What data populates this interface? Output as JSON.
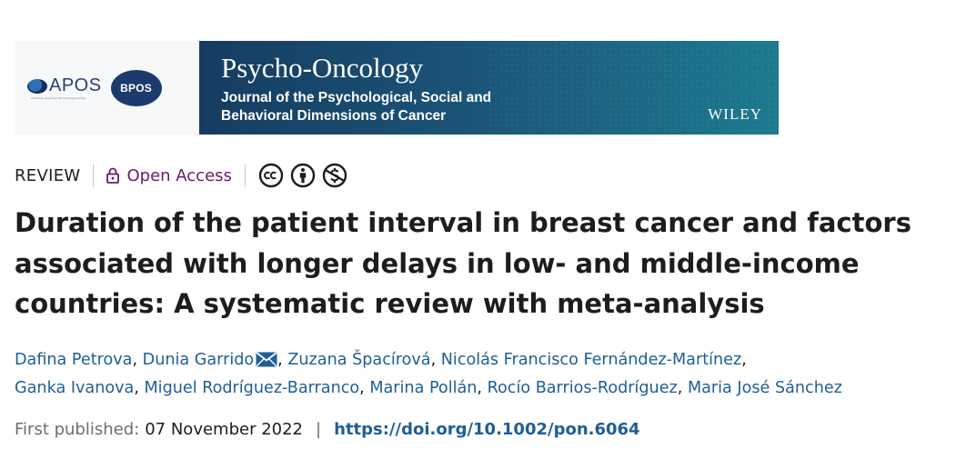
{
  "banner": {
    "apos_logo": "APOS",
    "apos_tagline": "american psychosocial oncology society",
    "bpos_logo": "BPOS",
    "journal_title": "Psycho-Oncology",
    "journal_subtitle_line1": "Journal of the Psychological, Social and",
    "journal_subtitle_line2": "Behavioral Dimensions of Cancer",
    "publisher": "WILEY"
  },
  "article_meta": {
    "type": "REVIEW",
    "access": "Open Access",
    "access_icon": "lock-icon",
    "license_icons": [
      "cc-icon",
      "by-attribution-icon",
      "non-commercial-icon"
    ]
  },
  "title": {
    "line1": "Duration of the patient interval in breast cancer and factors",
    "line2": "associated with longer delays in low- and middle-income",
    "line3": "countries: A systematic review with meta-analysis"
  },
  "authors": [
    "Dafina Petrova",
    "Dunia Garrido",
    "Zuzana Špacírová",
    "Nicolás Francisco Fernández-Martínez",
    "Ganka Ivanova",
    "Miguel Rodríguez-Barranco",
    "Marina Pollán",
    "Rocío Barrios-Rodríguez",
    "Maria José Sánchez"
  ],
  "corresponding_author_icon": "mail-icon",
  "publication": {
    "label": "First published:",
    "date": "07 November 2022",
    "separator": "|",
    "doi": "https://doi.org/10.1002/pon.6064"
  },
  "colors": {
    "link": "#1f5e96",
    "open_access": "#6b1a6b",
    "banner_dark": "#153c60",
    "banner_teal": "#1d7a8f"
  }
}
